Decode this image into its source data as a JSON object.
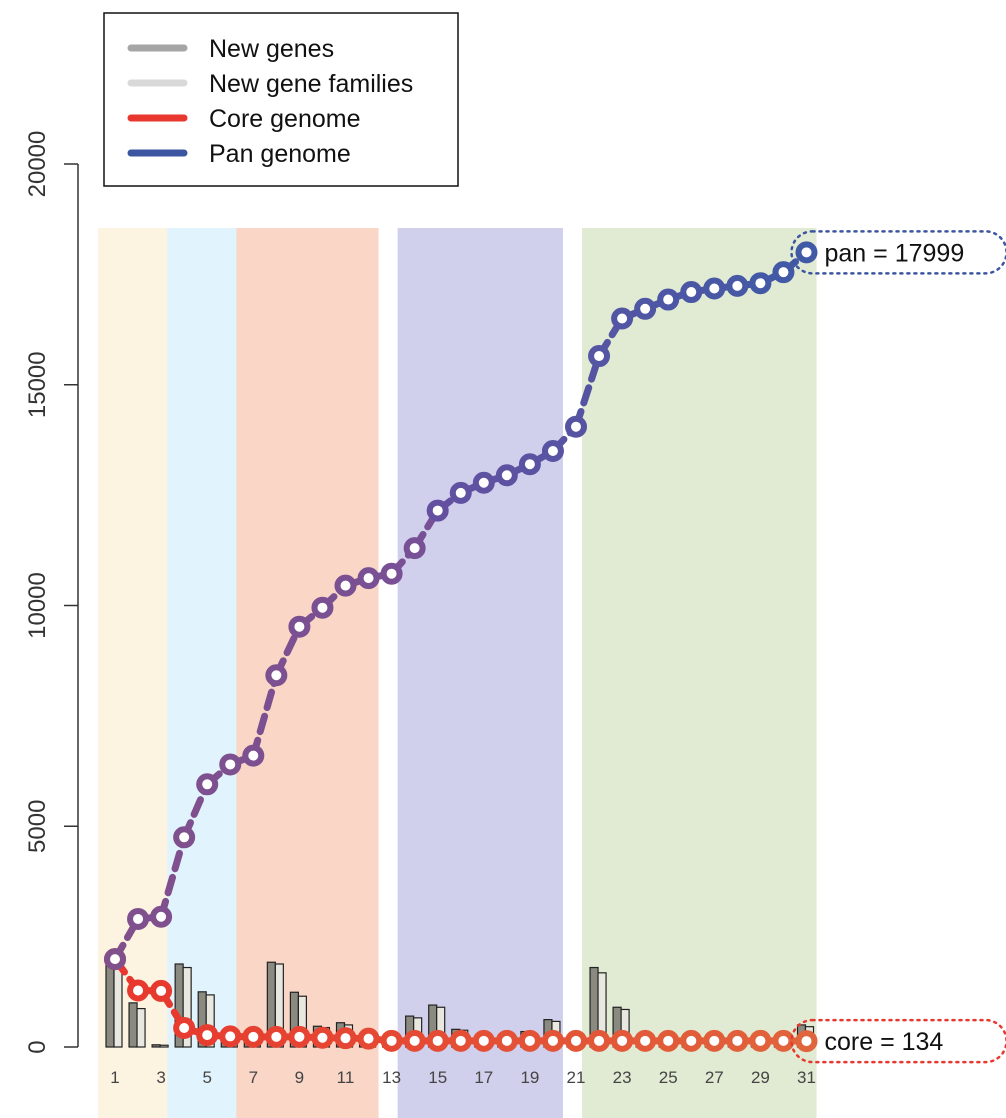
{
  "chart_data": {
    "type": "line",
    "title": "",
    "xlabel": "",
    "ylabel": "",
    "ylim": [
      0,
      20000
    ],
    "yticks": [
      0,
      5000,
      10000,
      15000,
      20000
    ],
    "yticks_labels": [
      "0",
      "5000",
      "10000",
      "15000",
      "20000"
    ],
    "xticks_labels": [
      "1",
      "3",
      "5",
      "7",
      "9",
      "11",
      "13",
      "15",
      "17",
      "19",
      "21",
      "23",
      "25",
      "27",
      "29",
      "31"
    ],
    "x": [
      1,
      2,
      3,
      4,
      5,
      6,
      7,
      8,
      9,
      10,
      11,
      12,
      13,
      14,
      15,
      16,
      17,
      18,
      19,
      20,
      21,
      22,
      23,
      24,
      25,
      26,
      27,
      28,
      29,
      30,
      31
    ],
    "legend": {
      "placement": "top-left",
      "entries": [
        {
          "label": "New genes",
          "color": "#a6a6a6"
        },
        {
          "label": "New gene families",
          "color": "#d9d9d9"
        },
        {
          "label": "Core genome",
          "color": "#e8372e"
        },
        {
          "label": "Pan genome",
          "color": "#3b55a1"
        }
      ]
    },
    "groups": [
      {
        "from": 1,
        "to": 3,
        "color": "#fdf3e1"
      },
      {
        "from": 4,
        "to": 6,
        "color": "#e1f3fc"
      },
      {
        "from": 7,
        "to": 12,
        "color": "#f9d6c6"
      },
      {
        "from": 14,
        "to": 20,
        "color": "#d0d0ec"
      },
      {
        "from": 22,
        "to": 31,
        "color": "#e1ead2"
      }
    ],
    "series": [
      {
        "name": "Pan genome",
        "values": [
          1990,
          2900,
          2950,
          4750,
          5950,
          6400,
          6600,
          8420,
          9520,
          9950,
          10450,
          10620,
          10720,
          11300,
          12150,
          12550,
          12780,
          12950,
          13200,
          13500,
          14050,
          15650,
          16500,
          16720,
          16930,
          17100,
          17180,
          17240,
          17300,
          17550,
          17999
        ]
      },
      {
        "name": "Core genome",
        "values": [
          1990,
          1280,
          1270,
          430,
          270,
          240,
          230,
          230,
          230,
          210,
          200,
          190,
          140,
          140,
          140,
          140,
          140,
          140,
          140,
          140,
          140,
          140,
          140,
          140,
          140,
          140,
          140,
          140,
          140,
          140,
          134
        ]
      },
      {
        "name": "New genes",
        "values": [
          1990,
          1000,
          50,
          1880,
          1250,
          180,
          180,
          1920,
          1240,
          470,
          550,
          180,
          50,
          700,
          950,
          400,
          150,
          170,
          350,
          620,
          150,
          1800,
          900,
          100,
          100,
          140,
          100,
          90,
          70,
          60,
          500
        ]
      },
      {
        "name": "New gene families",
        "values": [
          1990,
          870,
          40,
          1800,
          1180,
          170,
          160,
          1880,
          1150,
          440,
          500,
          160,
          40,
          660,
          900,
          380,
          130,
          150,
          300,
          580,
          120,
          1680,
          850,
          90,
          90,
          120,
          90,
          80,
          60,
          50,
          460
        ]
      }
    ],
    "annotations": [
      {
        "text": "pan = 17999",
        "at_x": 31,
        "at_y": 17999,
        "style": "dotted-box",
        "color": "#3b55a1"
      },
      {
        "text": "core = 134",
        "at_x": 31,
        "at_y": 134,
        "style": "dotted-box",
        "color": "#e8372e"
      }
    ]
  }
}
